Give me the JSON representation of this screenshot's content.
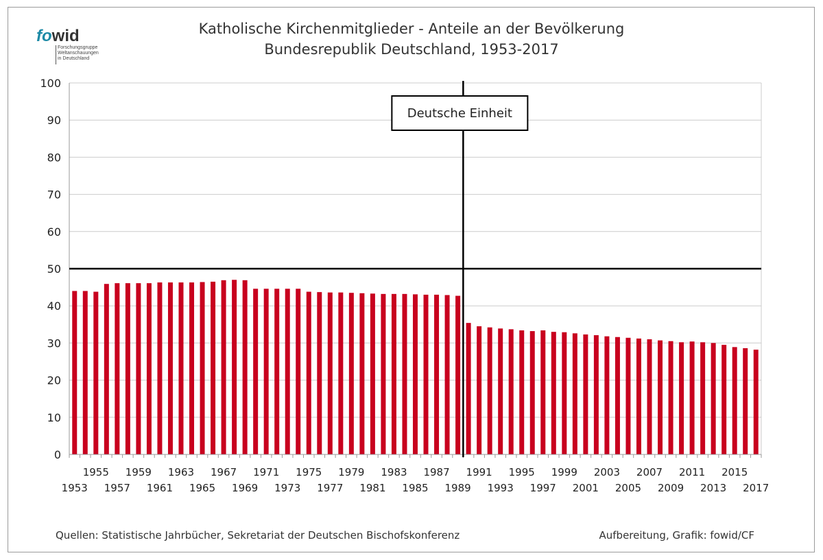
{
  "logo": {
    "word_fo": "fo",
    "word_wid": "wid",
    "subtitle_lines": [
      "Forschungsgruppe",
      "Weltanschauungen",
      "in Deutschland"
    ]
  },
  "chart_title_line1": "Katholische Kirchenmitglieder - Anteile an der Bevölkerung",
  "chart_title_line2": "Bundesrepublik Deutschland, 1953-2017",
  "footer": {
    "sources": "Quellen: Statistische Jahrbücher, Sekretariat der Deutschen Bischofskonferenz",
    "credit": "Aufbereitung, Grafik: fowid/CF"
  },
  "colors": {
    "bar": "#c8001e",
    "grid": "#cccccc",
    "axis": "#000000"
  },
  "chart_data": {
    "type": "bar",
    "xlabel": "",
    "ylabel": "",
    "ylim": [
      0,
      100
    ],
    "yticks": [
      0,
      10,
      20,
      30,
      40,
      50,
      60,
      70,
      80,
      90,
      100
    ],
    "grid": true,
    "categories": [
      1953,
      1954,
      1955,
      1956,
      1957,
      1958,
      1959,
      1960,
      1961,
      1962,
      1963,
      1964,
      1965,
      1966,
      1967,
      1968,
      1969,
      1970,
      1971,
      1972,
      1973,
      1974,
      1975,
      1976,
      1977,
      1978,
      1979,
      1980,
      1981,
      1982,
      1983,
      1984,
      1985,
      1986,
      1987,
      1988,
      1989,
      1990,
      1991,
      1992,
      1993,
      1994,
      1995,
      1996,
      1997,
      1998,
      1999,
      2000,
      2001,
      2002,
      2003,
      2004,
      2005,
      2006,
      2007,
      2008,
      2009,
      2010,
      2011,
      2012,
      2013,
      2014,
      2015,
      2016,
      2017
    ],
    "values": [
      44.0,
      44.0,
      43.8,
      45.9,
      46.1,
      46.1,
      46.1,
      46.1,
      46.3,
      46.3,
      46.3,
      46.3,
      46.4,
      46.5,
      46.9,
      47.0,
      46.9,
      44.6,
      44.6,
      44.6,
      44.6,
      44.6,
      43.8,
      43.7,
      43.6,
      43.6,
      43.5,
      43.4,
      43.3,
      43.2,
      43.2,
      43.2,
      43.1,
      43.0,
      43.0,
      42.9,
      42.7,
      35.4,
      34.5,
      34.2,
      33.9,
      33.7,
      33.4,
      33.2,
      33.4,
      33.0,
      32.9,
      32.6,
      32.3,
      32.1,
      31.8,
      31.6,
      31.4,
      31.2,
      31.0,
      30.7,
      30.5,
      30.2,
      30.4,
      30.2,
      30.0,
      29.5,
      28.9,
      28.6,
      28.2
    ],
    "tick_labels_top": [
      "1955",
      "1959",
      "1963",
      "1967",
      "1971",
      "1975",
      "1979",
      "1983",
      "1987",
      "1991",
      "1995",
      "1999",
      "2003",
      "2007",
      "2011",
      "2015"
    ],
    "tick_labels_bottom": [
      "1953",
      "1957",
      "1961",
      "1965",
      "1969",
      "1973",
      "1977",
      "1981",
      "1985",
      "1989",
      "1993",
      "1997",
      "2001",
      "2005",
      "2009",
      "2013",
      "2017"
    ],
    "reference_line_y": 50,
    "vertical_marker_after_year": 1989,
    "annotation": "Deutsche Einheit"
  }
}
